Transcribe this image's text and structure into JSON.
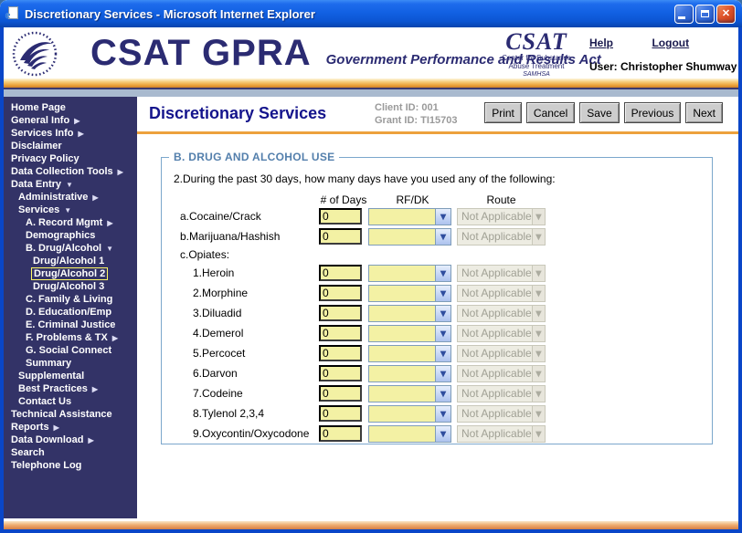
{
  "window": {
    "title": "Discretionary Services - Microsoft Internet Explorer"
  },
  "header": {
    "brand": "CSAT GPRA",
    "tagline": "Government Performance and Results Act",
    "csat_logo": {
      "name": "CSAT",
      "line1": "Center for Substance",
      "line2": "Abuse Treatment",
      "line3": "SAMHSA"
    },
    "help_label": "Help",
    "logout_label": "Logout",
    "user": "User: Christopher Shumway"
  },
  "sidebar": {
    "items": [
      {
        "label": "Home Page",
        "level": 0,
        "arrow": "",
        "selected": false
      },
      {
        "label": "General Info",
        "level": 0,
        "arrow": "right",
        "selected": false
      },
      {
        "label": "Services Info",
        "level": 0,
        "arrow": "right",
        "selected": false
      },
      {
        "label": "Disclaimer",
        "level": 0,
        "arrow": "",
        "selected": false
      },
      {
        "label": "Privacy Policy",
        "level": 0,
        "arrow": "",
        "selected": false
      },
      {
        "label": "Data Collection Tools",
        "level": 0,
        "arrow": "right",
        "selected": false
      },
      {
        "label": "Data Entry",
        "level": 0,
        "arrow": "down",
        "selected": false
      },
      {
        "label": "Administrative",
        "level": 1,
        "arrow": "right",
        "selected": false
      },
      {
        "label": "Services",
        "level": 1,
        "arrow": "down",
        "selected": false
      },
      {
        "label": "A. Record Mgmt",
        "level": 2,
        "arrow": "right",
        "selected": false
      },
      {
        "label": "Demographics",
        "level": 2,
        "arrow": "",
        "selected": false
      },
      {
        "label": "B. Drug/Alcohol",
        "level": 2,
        "arrow": "down",
        "selected": false
      },
      {
        "label": "Drug/Alcohol 1",
        "level": 3,
        "arrow": "",
        "selected": false
      },
      {
        "label": "Drug/Alcohol 2",
        "level": 3,
        "arrow": "",
        "selected": true
      },
      {
        "label": "Drug/Alcohol 3",
        "level": 3,
        "arrow": "",
        "selected": false
      },
      {
        "label": "C. Family & Living",
        "level": 2,
        "arrow": "",
        "selected": false
      },
      {
        "label": "D. Education/Emp",
        "level": 2,
        "arrow": "",
        "selected": false
      },
      {
        "label": "E. Criminal Justice",
        "level": 2,
        "arrow": "",
        "selected": false
      },
      {
        "label": "F. Problems & TX",
        "level": 2,
        "arrow": "right",
        "selected": false
      },
      {
        "label": "G. Social Connect",
        "level": 2,
        "arrow": "",
        "selected": false
      },
      {
        "label": "Summary",
        "level": 2,
        "arrow": "",
        "selected": false
      },
      {
        "label": "Supplemental",
        "level": 1,
        "arrow": "",
        "selected": false
      },
      {
        "label": "Best Practices",
        "level": 1,
        "arrow": "right",
        "selected": false
      },
      {
        "label": "Contact Us",
        "level": 1,
        "arrow": "",
        "selected": false
      },
      {
        "label": "Technical Assistance",
        "level": 0,
        "arrow": "",
        "selected": false
      },
      {
        "label": "Reports",
        "level": 0,
        "arrow": "right",
        "selected": false
      },
      {
        "label": "Data Download",
        "level": 0,
        "arrow": "right",
        "selected": false
      },
      {
        "label": "Search",
        "level": 0,
        "arrow": "",
        "selected": false
      },
      {
        "label": "Telephone Log",
        "level": 0,
        "arrow": "",
        "selected": false
      }
    ]
  },
  "page": {
    "title": "Discretionary Services",
    "client_id": "Client ID: 001",
    "grant_id": "Grant ID: TI15703",
    "buttons": [
      "Print",
      "Cancel",
      "Save",
      "Previous",
      "Next"
    ]
  },
  "form": {
    "legend": "B. DRUG AND ALCOHOL USE",
    "question": "2.During the past 30 days, how many days have you used any of the following:",
    "columns": [
      "# of Days",
      "RF/DK",
      "Route"
    ],
    "rows": [
      {
        "label": "a.Cocaine/Crack",
        "indent": 0,
        "fields": true,
        "days": "0",
        "rfdk": "",
        "route": "Not Applicable"
      },
      {
        "label": "b.Marijuana/Hashish",
        "indent": 0,
        "fields": true,
        "days": "0",
        "rfdk": "",
        "route": "Not Applicable"
      },
      {
        "label": "c.Opiates:",
        "indent": 0,
        "fields": false,
        "days": "",
        "rfdk": "",
        "route": ""
      },
      {
        "label": "1.Heroin",
        "indent": 1,
        "fields": true,
        "days": "0",
        "rfdk": "",
        "route": "Not Applicable"
      },
      {
        "label": "2.Morphine",
        "indent": 1,
        "fields": true,
        "days": "0",
        "rfdk": "",
        "route": "Not Applicable"
      },
      {
        "label": "3.Diluadid",
        "indent": 1,
        "fields": true,
        "days": "0",
        "rfdk": "",
        "route": "Not Applicable"
      },
      {
        "label": "4.Demerol",
        "indent": 1,
        "fields": true,
        "days": "0",
        "rfdk": "",
        "route": "Not Applicable"
      },
      {
        "label": "5.Percocet",
        "indent": 1,
        "fields": true,
        "days": "0",
        "rfdk": "",
        "route": "Not Applicable"
      },
      {
        "label": "6.Darvon",
        "indent": 1,
        "fields": true,
        "days": "0",
        "rfdk": "",
        "route": "Not Applicable"
      },
      {
        "label": "7.Codeine",
        "indent": 1,
        "fields": true,
        "days": "0",
        "rfdk": "",
        "route": "Not Applicable"
      },
      {
        "label": "8.Tylenol 2,3,4",
        "indent": 1,
        "fields": true,
        "days": "0",
        "rfdk": "",
        "route": "Not Applicable"
      },
      {
        "label": "9.Oxycontin/Oxycodone",
        "indent": 1,
        "fields": true,
        "days": "0",
        "rfdk": "",
        "route": "Not Applicable"
      }
    ]
  },
  "colors": {
    "navy": "#2B2B72",
    "sidebar_bg": "#333367",
    "field_yellow": "#F3F1A4",
    "steel_blue": "#7F9DB9",
    "legend_blue": "#537FAC",
    "orange": "#EDA13C",
    "gray_label": "#9A9A9A",
    "selected_outline": "#FFF966",
    "disabled_bg": "#EDECE2",
    "disabled_text": "#A0A094"
  }
}
